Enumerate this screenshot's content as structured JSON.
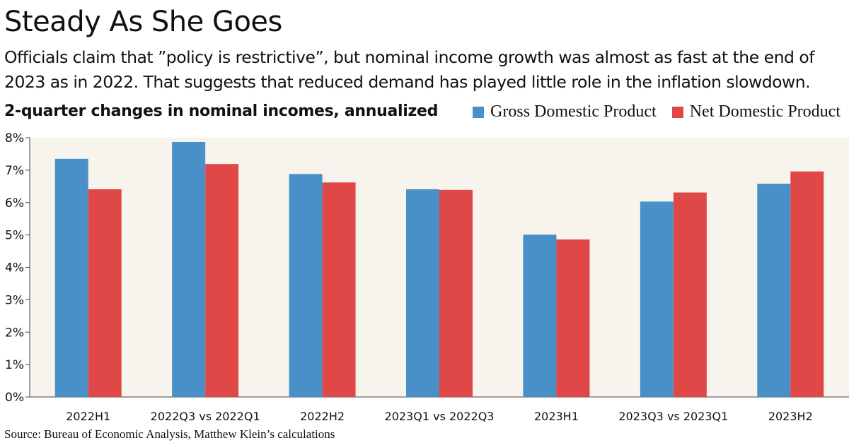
{
  "title": "Steady As She Goes",
  "subtitle": "Officials claim that ”policy is restrictive”, but nominal income growth was almost as fast at the end of 2023 as in 2022. That suggests that reduced demand has played little role in the inflation slowdown.",
  "chart_label": "2-quarter changes in nominal incomes, annualized",
  "source": "Source: Bureau of Economic Analysis, Matthew Klein’s calculations",
  "colors": {
    "gdp": "#4a90c8",
    "ndp": "#e04848",
    "plot_bg": "#f6f4ec"
  },
  "chart_data": {
    "type": "bar",
    "categories": [
      "2022H1",
      "2022Q3 vs 2022Q1",
      "2022H2",
      "2023Q1 vs 2022Q3",
      "2023H1",
      "2023Q3 vs 2023Q1",
      "2023H2"
    ],
    "series": [
      {
        "name": "Gross Domestic Product",
        "color": "#4a90c8",
        "values": [
          7.35,
          7.87,
          6.88,
          6.41,
          5.01,
          6.03,
          6.58
        ]
      },
      {
        "name": "Net Domestic Product",
        "color": "#e04848",
        "values": [
          6.41,
          7.19,
          6.62,
          6.39,
          4.86,
          6.31,
          6.96
        ]
      }
    ],
    "ylim": [
      0,
      8
    ],
    "yticks": [
      "0%",
      "1%",
      "2%",
      "3%",
      "4%",
      "5%",
      "6%",
      "7%",
      "8%"
    ],
    "grid": false,
    "legend_position": "top-right"
  }
}
